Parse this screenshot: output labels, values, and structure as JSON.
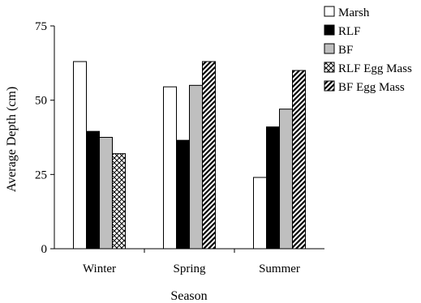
{
  "chart_data": {
    "type": "bar",
    "xlabel": "Season",
    "ylabel": "Average Depth (cm)",
    "categories": [
      "Winter",
      "Spring",
      "Summer"
    ],
    "yticks": [
      "0",
      "25",
      "50",
      "75"
    ],
    "ylim": [
      0,
      75
    ],
    "grid": false,
    "legend_position": "top-right",
    "series": [
      {
        "name": "Marsh",
        "values": [
          63,
          54.5,
          24
        ],
        "fill": "#ffffff",
        "pattern": "solid"
      },
      {
        "name": "RLF",
        "values": [
          39.5,
          36.5,
          41
        ],
        "fill": "#000000",
        "pattern": "solid"
      },
      {
        "name": "BF",
        "values": [
          37.5,
          55,
          47
        ],
        "fill": "#bfbfbf",
        "pattern": "solid"
      },
      {
        "name": "RLF Egg Mass",
        "values": [
          32,
          null,
          null
        ],
        "fill": "#ffffff",
        "pattern": "crosshatch"
      },
      {
        "name": "BF Egg Mass",
        "values": [
          null,
          63,
          60
        ],
        "fill": "#ffffff",
        "pattern": "diagonal"
      }
    ]
  }
}
